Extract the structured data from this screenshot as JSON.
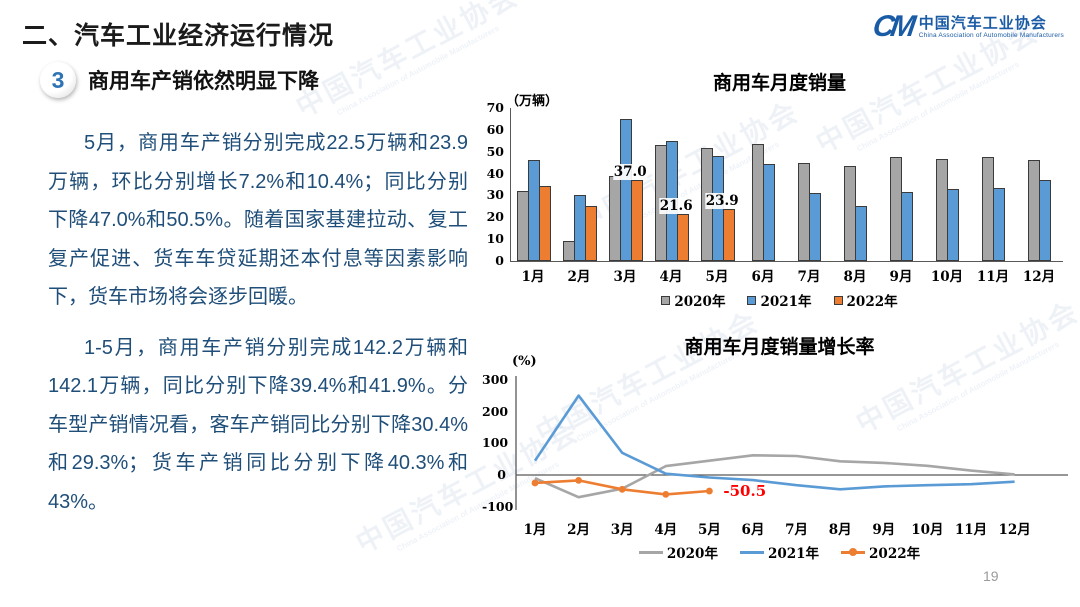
{
  "slide": {
    "title": "二、汽车工业经济运行情况",
    "page_number": "19"
  },
  "logo": {
    "mark": "CM",
    "name_cn": "中国汽车工业协会",
    "name_en": "China Association of Automobile Manufacturers",
    "color": "#1a5ba6"
  },
  "section": {
    "number": "3",
    "title": "商用车产销依然明显下降"
  },
  "body": {
    "paragraphs": [
      "5月，商用车产销分别完成22.5万辆和23.9万辆，环比分别增长7.2%和10.4%；同比分别下降47.0%和50.5%。随着国家基建拉动、复工复产促进、货车车贷延期还本付息等因素影响下，货车市场将会逐步回暖。",
      "1-5月，商用车产销分别完成142.2万辆和142.1万辆，同比分别下降39.4%和41.9%。分车型产销情况看，客车产销同比分别下降30.4%和29.3%；货车产销同比分别下降40.3%和43%。"
    ]
  },
  "watermark": {
    "cn": "中国汽车工业协会",
    "en": "China Association of Automobile Manufacturers"
  },
  "chart_data": [
    {
      "type": "bar",
      "title": "商用车月度销量",
      "unit": "（万辆）",
      "ylabel": "万辆",
      "ylim": [
        0,
        70
      ],
      "ytick_step": 10,
      "grid": false,
      "legend_position": "bottom",
      "categories": [
        "1月",
        "2月",
        "3月",
        "4月",
        "5月",
        "6月",
        "7月",
        "8月",
        "9月",
        "10月",
        "11月",
        "12月"
      ],
      "series": [
        {
          "name": "2020年",
          "color": "#a6a6a6",
          "border": "#3b3b3b",
          "values": [
            32,
            9,
            39,
            53,
            51.5,
            53.5,
            45,
            43.5,
            47.5,
            46.5,
            47.5,
            46
          ]
        },
        {
          "name": "2021年",
          "color": "#5b9bd5",
          "border": "#3b3b3b",
          "values": [
            46,
            30,
            65,
            55,
            48,
            44.5,
            31,
            25,
            31.5,
            33,
            33.5,
            37
          ]
        },
        {
          "name": "2022年",
          "color": "#ed7d31",
          "border": "#3b3b3b",
          "values": [
            34.5,
            25,
            37,
            21.6,
            23.9,
            null,
            null,
            null,
            null,
            null,
            null,
            null
          ],
          "labels": [
            null,
            null,
            "37.0",
            "21.6",
            "23.9",
            null,
            null,
            null,
            null,
            null,
            null,
            null
          ]
        }
      ]
    },
    {
      "type": "line",
      "title": "商用车月度销量增长率",
      "unit": "(%)",
      "ylabel": "%",
      "ylim": [
        -100,
        300
      ],
      "yticks": [
        300,
        200,
        100,
        0,
        -100
      ],
      "grid": false,
      "legend_position": "bottom",
      "categories": [
        "1月",
        "2月",
        "3月",
        "4月",
        "5月",
        "6月",
        "7月",
        "8月",
        "9月",
        "10月",
        "11月",
        "12月"
      ],
      "series": [
        {
          "name": "2020年",
          "color": "#a6a6a6",
          "marker": false,
          "values": [
            -10,
            -70,
            -43,
            28,
            45,
            62,
            60,
            43,
            38,
            29,
            14,
            2
          ]
        },
        {
          "name": "2021年",
          "color": "#5b9bd5",
          "marker": false,
          "values": [
            45,
            250,
            70,
            4,
            -8,
            -16,
            -32,
            -45,
            -36,
            -32,
            -29,
            -21
          ]
        },
        {
          "name": "2022年",
          "color": "#ed7d31",
          "marker": true,
          "values": [
            -25,
            -17,
            -45,
            -61,
            -50.5,
            null,
            null,
            null,
            null,
            null,
            null,
            null
          ]
        }
      ],
      "annotation": {
        "text": "-50.5",
        "value": -50.5,
        "index": 4,
        "color": "#ff0000"
      }
    }
  ]
}
